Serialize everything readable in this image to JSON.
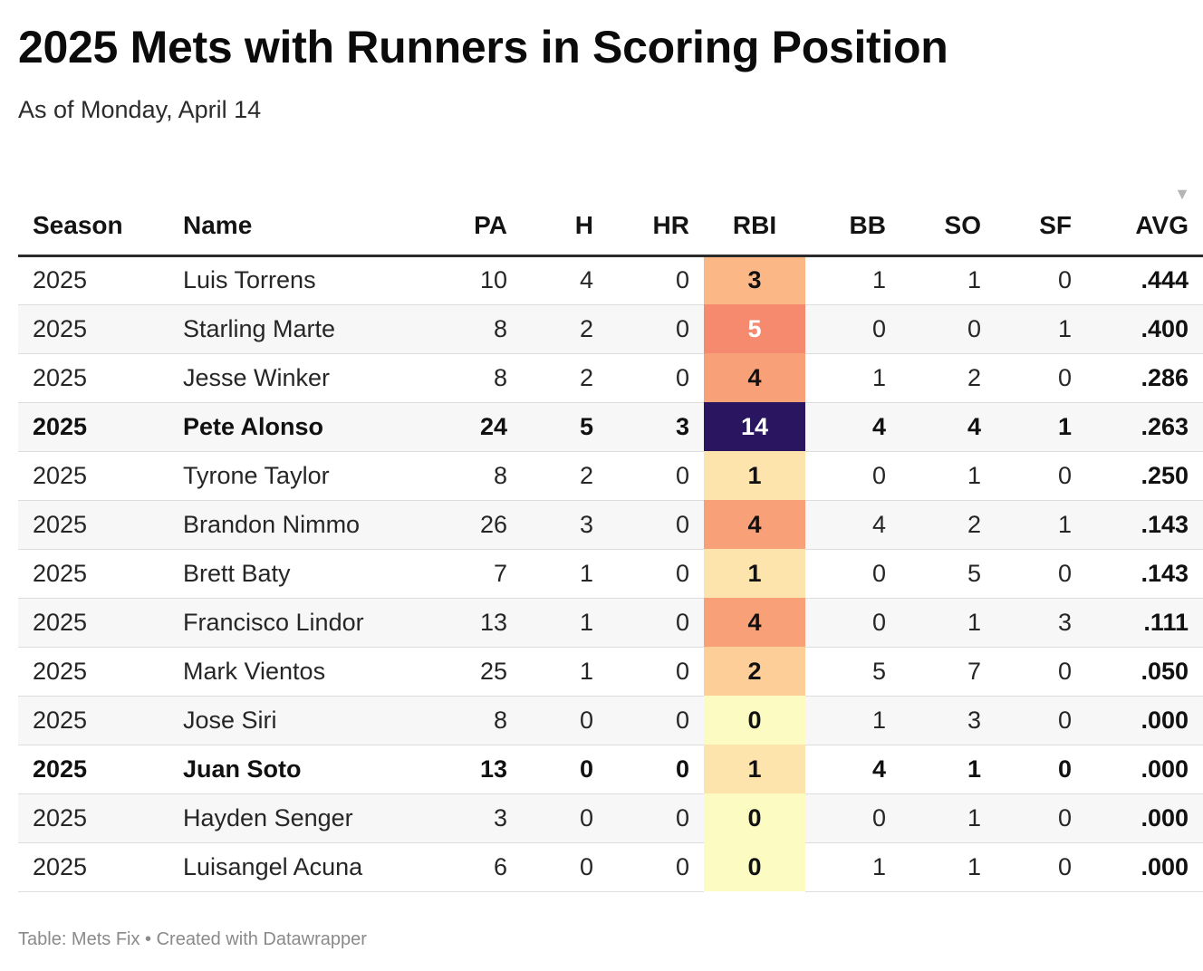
{
  "title": "2025 Mets with Runners in Scoring Position",
  "subtitle": "As of Monday, April 14",
  "footer": "Table: Mets Fix • Created with Datawrapper",
  "sort_icon": "▼",
  "colors": {
    "rbi_scale": {
      "0": "#fcfcc2",
      "1": "#fde4ad",
      "2": "#fdce98",
      "3": "#fbb785",
      "4": "#f8a078",
      "5": "#f58a6e",
      "14": "#2a1660"
    },
    "rbi_dark_text": "#111111",
    "rbi_light_text": "#ffffff"
  },
  "chart_data": {
    "type": "table",
    "columns": [
      "Season",
      "Name",
      "PA",
      "H",
      "HR",
      "RBI",
      "BB",
      "SO",
      "SF",
      "AVG"
    ],
    "sorted_by": "AVG",
    "sort_direction": "descending",
    "rows": [
      {
        "season": "2025",
        "name": "Luis Torrens",
        "pa": "10",
        "h": "4",
        "hr": "0",
        "rbi": "3",
        "bb": "1",
        "so": "1",
        "sf": "0",
        "avg": ".444",
        "bold": false
      },
      {
        "season": "2025",
        "name": "Starling Marte",
        "pa": "8",
        "h": "2",
        "hr": "0",
        "rbi": "5",
        "bb": "0",
        "so": "0",
        "sf": "1",
        "avg": ".400",
        "bold": false
      },
      {
        "season": "2025",
        "name": "Jesse Winker",
        "pa": "8",
        "h": "2",
        "hr": "0",
        "rbi": "4",
        "bb": "1",
        "so": "2",
        "sf": "0",
        "avg": ".286",
        "bold": false
      },
      {
        "season": "2025",
        "name": "Pete Alonso",
        "pa": "24",
        "h": "5",
        "hr": "3",
        "rbi": "14",
        "bb": "4",
        "so": "4",
        "sf": "1",
        "avg": ".263",
        "bold": true
      },
      {
        "season": "2025",
        "name": "Tyrone Taylor",
        "pa": "8",
        "h": "2",
        "hr": "0",
        "rbi": "1",
        "bb": "0",
        "so": "1",
        "sf": "0",
        "avg": ".250",
        "bold": false
      },
      {
        "season": "2025",
        "name": "Brandon Nimmo",
        "pa": "26",
        "h": "3",
        "hr": "0",
        "rbi": "4",
        "bb": "4",
        "so": "2",
        "sf": "1",
        "avg": ".143",
        "bold": false
      },
      {
        "season": "2025",
        "name": "Brett Baty",
        "pa": "7",
        "h": "1",
        "hr": "0",
        "rbi": "1",
        "bb": "0",
        "so": "5",
        "sf": "0",
        "avg": ".143",
        "bold": false
      },
      {
        "season": "2025",
        "name": "Francisco Lindor",
        "pa": "13",
        "h": "1",
        "hr": "0",
        "rbi": "4",
        "bb": "0",
        "so": "1",
        "sf": "3",
        "avg": ".111",
        "bold": false
      },
      {
        "season": "2025",
        "name": "Mark Vientos",
        "pa": "25",
        "h": "1",
        "hr": "0",
        "rbi": "2",
        "bb": "5",
        "so": "7",
        "sf": "0",
        "avg": ".050",
        "bold": false
      },
      {
        "season": "2025",
        "name": "Jose Siri",
        "pa": "8",
        "h": "0",
        "hr": "0",
        "rbi": "0",
        "bb": "1",
        "so": "3",
        "sf": "0",
        "avg": ".000",
        "bold": false
      },
      {
        "season": "2025",
        "name": "Juan Soto",
        "pa": "13",
        "h": "0",
        "hr": "0",
        "rbi": "1",
        "bb": "4",
        "so": "1",
        "sf": "0",
        "avg": ".000",
        "bold": true
      },
      {
        "season": "2025",
        "name": "Hayden Senger",
        "pa": "3",
        "h": "0",
        "hr": "0",
        "rbi": "0",
        "bb": "0",
        "so": "1",
        "sf": "0",
        "avg": ".000",
        "bold": false
      },
      {
        "season": "2025",
        "name": "Luisangel Acuna",
        "pa": "6",
        "h": "0",
        "hr": "0",
        "rbi": "0",
        "bb": "1",
        "so": "1",
        "sf": "0",
        "avg": ".000",
        "bold": false
      }
    ]
  }
}
